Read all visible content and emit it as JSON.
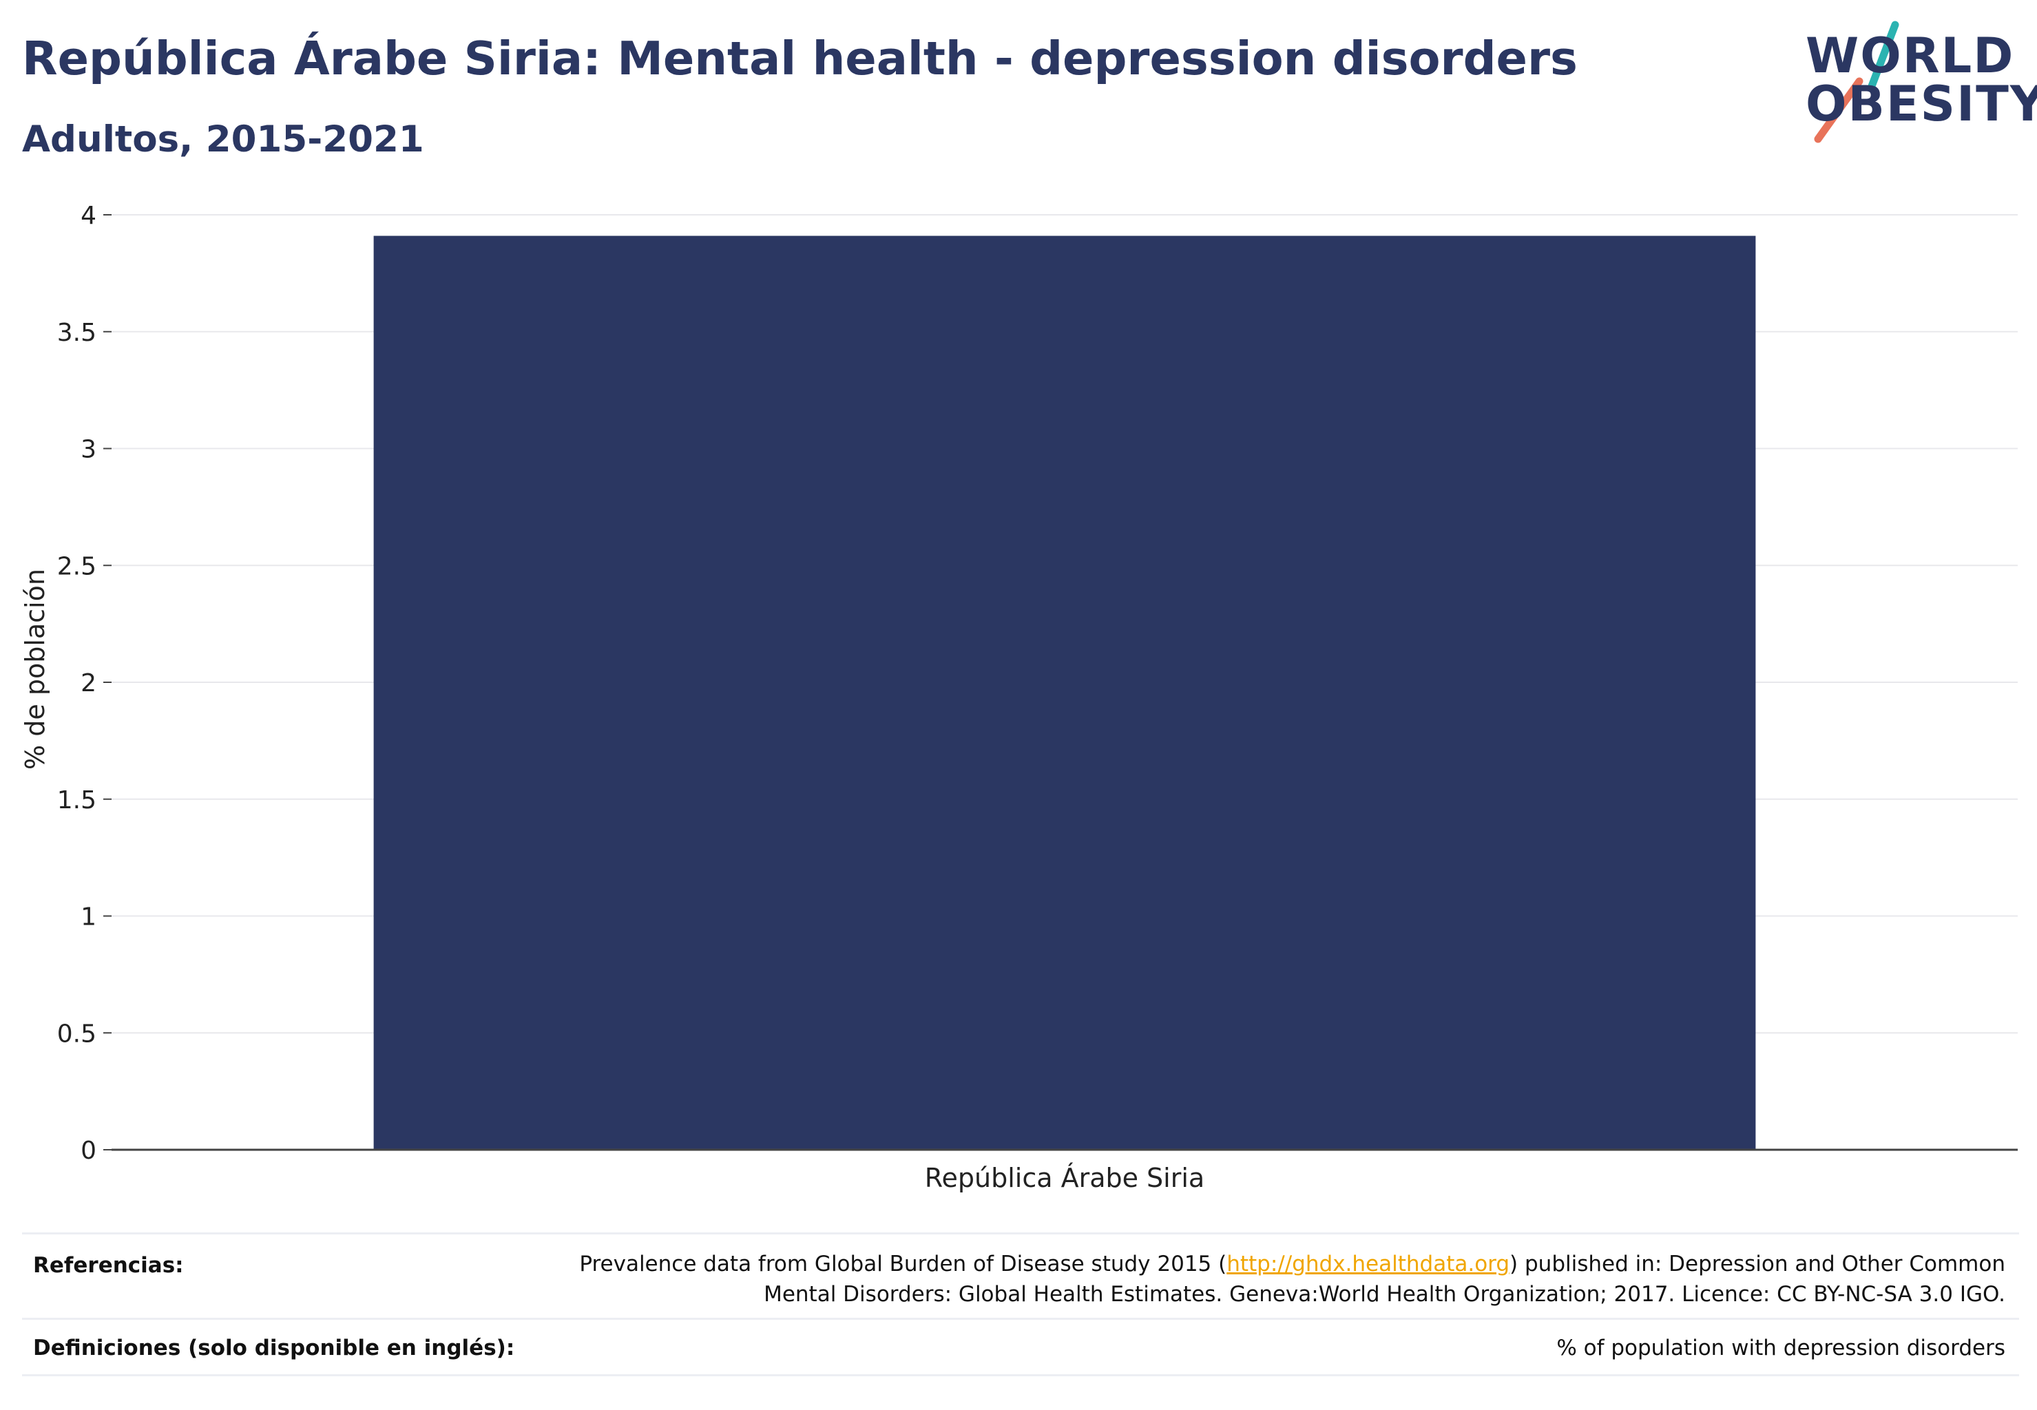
{
  "header": {
    "title": "República Árabe Siria: Mental health - depression disorders",
    "subtitle": "Adultos, 2015-2021"
  },
  "logo": {
    "line1": "WORLD",
    "line2": "OBESITY",
    "accent_teal": "#2bb3b1",
    "accent_coral": "#e8735a"
  },
  "chart_data": {
    "type": "bar",
    "categories": [
      "República Árabe Siria"
    ],
    "values": [
      3.91
    ],
    "ylabel": "% de población",
    "xlabel": "",
    "ylim": [
      0,
      4
    ],
    "yticks": [
      0,
      0.5,
      1,
      1.5,
      2,
      2.5,
      3,
      3.5,
      4
    ],
    "ytick_labels": [
      "0",
      "0.5",
      "1",
      "1.5",
      "2",
      "2.5",
      "3",
      "3.5",
      "4"
    ],
    "grid": true,
    "bar_color": "#2b3762"
  },
  "footer": {
    "references_label": "Referencias:",
    "references_pre": "Prevalence data from Global Burden of Disease study 2015 (",
    "references_link": "http://ghdx.healthdata.org",
    "references_post": ") published in: Depression and Other Common",
    "references_line2": "Mental Disorders: Global Health Estimates. Geneva:World Health Organization; 2017. Licence: CC BY-NC-SA 3.0 IGO.",
    "definitions_label": "Definiciones (solo disponible en inglés):",
    "definitions_text": "% of population with depression disorders"
  }
}
